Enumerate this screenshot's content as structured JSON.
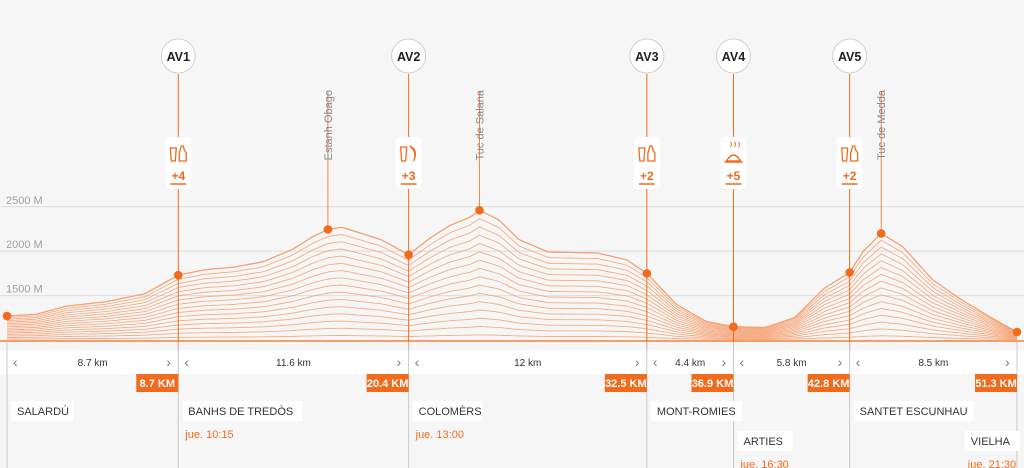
{
  "colors": {
    "accent": "#f26a1b",
    "dark": "#222222",
    "grey": "#8a8a8a",
    "line": "#f5a070"
  },
  "chart_data": {
    "type": "area",
    "x_unit": "km",
    "y_unit": "M",
    "ylim": [
      1000,
      2700
    ],
    "xlim": [
      0,
      51.3
    ],
    "yticks": [
      {
        "value": 2500,
        "label": "2500 M"
      },
      {
        "value": 2000,
        "label": "2000 M"
      },
      {
        "value": 1500,
        "label": "1500 M"
      }
    ],
    "profile": [
      [
        0,
        1270
      ],
      [
        1.5,
        1290
      ],
      [
        3,
        1380
      ],
      [
        5,
        1430
      ],
      [
        7,
        1520
      ],
      [
        8.7,
        1730
      ],
      [
        10,
        1790
      ],
      [
        11.5,
        1820
      ],
      [
        13,
        1880
      ],
      [
        14.5,
        2020
      ],
      [
        15.5,
        2160
      ],
      [
        16.3,
        2245
      ],
      [
        17,
        2270
      ],
      [
        18,
        2200
      ],
      [
        19,
        2130
      ],
      [
        20.4,
        1960
      ],
      [
        21.5,
        2150
      ],
      [
        22.5,
        2290
      ],
      [
        23.5,
        2380
      ],
      [
        24,
        2460
      ],
      [
        25,
        2350
      ],
      [
        26,
        2130
      ],
      [
        27.5,
        1990
      ],
      [
        30,
        1980
      ],
      [
        31.5,
        1900
      ],
      [
        32.5,
        1750
      ],
      [
        34,
        1400
      ],
      [
        35.5,
        1210
      ],
      [
        36.9,
        1150
      ],
      [
        38.5,
        1140
      ],
      [
        40,
        1250
      ],
      [
        41.5,
        1580
      ],
      [
        42.8,
        1760
      ],
      [
        43.5,
        2000
      ],
      [
        44.4,
        2200
      ],
      [
        45.5,
        2050
      ],
      [
        47,
        1680
      ],
      [
        48.5,
        1450
      ],
      [
        50,
        1250
      ],
      [
        51.3,
        1090
      ]
    ],
    "layers": 16,
    "dots": [
      {
        "x": 0,
        "y": 1270
      },
      {
        "x": 8.7,
        "y": 1730
      },
      {
        "x": 16.3,
        "y": 2245
      },
      {
        "x": 20.4,
        "y": 1960
      },
      {
        "x": 24,
        "y": 2460
      },
      {
        "x": 32.5,
        "y": 1750
      },
      {
        "x": 36.9,
        "y": 1150
      },
      {
        "x": 42.8,
        "y": 1760
      },
      {
        "x": 44.4,
        "y": 2200
      },
      {
        "x": 51.3,
        "y": 1090
      }
    ],
    "aid_stations": [
      {
        "name": "AV1",
        "km": 8.7,
        "count": "+4",
        "icon": "drinks-icon"
      },
      {
        "name": "AV2",
        "km": 20.4,
        "count": "+3",
        "icon": "drink-fruit-icon"
      },
      {
        "name": "AV3",
        "km": 32.5,
        "count": "+2",
        "icon": "drinks-icon"
      },
      {
        "name": "AV4",
        "km": 36.9,
        "count": "+5",
        "icon": "hot-meal-icon"
      },
      {
        "name": "AV5",
        "km": 42.8,
        "count": "+2",
        "icon": "drinks-icon"
      }
    ],
    "peaks": [
      {
        "name": "Estanh Obago",
        "km": 16.3
      },
      {
        "name": "Tuc de Salana",
        "km": 24
      },
      {
        "name": "Tuc de Medda",
        "km": 44.4
      }
    ],
    "segments": [
      {
        "from": 0,
        "to": 8.7,
        "label": "8.7 km"
      },
      {
        "from": 8.7,
        "to": 20.4,
        "label": "11.6 km"
      },
      {
        "from": 20.4,
        "to": 32.5,
        "label": "12 km"
      },
      {
        "from": 32.5,
        "to": 36.9,
        "label": "4.4 km"
      },
      {
        "from": 36.9,
        "to": 42.8,
        "label": "5.8 km"
      },
      {
        "from": 42.8,
        "to": 51.3,
        "label": "8.5 km"
      }
    ],
    "km_markers": [
      {
        "km": 8.7,
        "label": "8.7 KM"
      },
      {
        "km": 20.4,
        "label": "20.4 KM"
      },
      {
        "km": 32.5,
        "label": "32.5 KM"
      },
      {
        "km": 36.9,
        "label": "36.9 KM"
      },
      {
        "km": 42.8,
        "label": "42.8 KM"
      },
      {
        "km": 51.3,
        "label": "51.3 KM"
      }
    ],
    "places": [
      {
        "name": "SALARDÚ",
        "km": 0,
        "row": 0,
        "time": ""
      },
      {
        "name": "BANHS DE TREDÒS",
        "km": 8.7,
        "row": 0,
        "time": "jue. 10:15"
      },
      {
        "name": "COLOMÈRS",
        "km": 20.4,
        "row": 0,
        "time": "jue. 13:00"
      },
      {
        "name": "MONT-ROMIES",
        "km": 32.5,
        "row": 0,
        "time": ""
      },
      {
        "name": "ARTIES",
        "km": 36.9,
        "row": 1,
        "time": "jue. 16:30"
      },
      {
        "name": "SANTET ESCUNHAU",
        "km": 42.8,
        "row": 0,
        "time": ""
      },
      {
        "name": "VIELHA",
        "km": 51.3,
        "row": 1,
        "time": "jue. 21:30"
      }
    ]
  }
}
